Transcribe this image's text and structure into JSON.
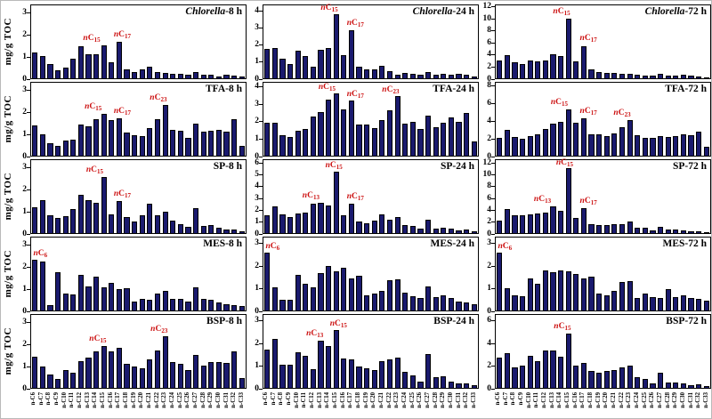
{
  "figure": {
    "ylabel": "mg/g TOC"
  },
  "chart_data": {
    "type": "bar",
    "grid": {
      "rows": 5,
      "cols": 3
    },
    "bar_color": "#1a1a6e",
    "annotation_color": "#cc1111",
    "categories": [
      "n-C6",
      "n-C7",
      "n-C8",
      "n-C9",
      "n-C10",
      "n-C11",
      "n-C12",
      "n-C13",
      "n-C14",
      "n-C15",
      "n-C16",
      "n-C17",
      "n-C18",
      "n-C19",
      "n-C20",
      "n-C21",
      "n-C22",
      "n-C23",
      "n-C24",
      "n-C25",
      "n-C26",
      "n-C27",
      "n-C28",
      "n-C29",
      "n-C30",
      "n-C31",
      "n-C32",
      "n-C33"
    ],
    "panels": [
      {
        "title_italic": "Chlorella",
        "title_rest": "-8 h",
        "yticks": [
          0,
          1,
          2,
          3
        ],
        "ymax": 3.4,
        "values": [
          1.2,
          1.02,
          0.65,
          0.38,
          0.5,
          0.93,
          1.5,
          1.13,
          1.12,
          1.55,
          0.75,
          1.7,
          0.4,
          0.28,
          0.4,
          0.55,
          0.3,
          0.25,
          0.2,
          0.2,
          0.15,
          0.3,
          0.15,
          0.15,
          0.1,
          0.15,
          0.12,
          0.07
        ],
        "annotations": [
          {
            "text": "nC",
            "sub": "15",
            "bar": 9,
            "dx": -1.6,
            "dy": 2
          },
          {
            "text": "nC",
            "sub": "17",
            "bar": 11,
            "dx": 0.4,
            "dy": 2
          }
        ]
      },
      {
        "title_italic": "Chlorella",
        "title_rest": "-24 h",
        "yticks": [
          0,
          1,
          2,
          3,
          4
        ],
        "ymax": 4.4,
        "values": [
          1.75,
          1.85,
          1.2,
          0.85,
          1.65,
          1.35,
          0.7,
          1.7,
          1.85,
          3.85,
          1.4,
          2.9,
          0.7,
          0.55,
          0.55,
          0.75,
          0.45,
          0.2,
          0.3,
          0.25,
          0.2,
          0.4,
          0.2,
          0.25,
          0.2,
          0.25,
          0.2,
          0.1
        ],
        "annotations": [
          {
            "text": "nC",
            "sub": "15",
            "bar": 9,
            "dx": -0.9,
            "dy": 1
          },
          {
            "text": "nC",
            "sub": "17",
            "bar": 11,
            "dx": 0.5,
            "dy": 2
          }
        ]
      },
      {
        "title_italic": "Chlorella",
        "title_rest": "-72 h",
        "yticks": [
          0,
          2,
          4,
          6,
          8,
          10,
          12
        ],
        "ymax": 12.4,
        "values": [
          3.1,
          3.9,
          2.7,
          2.4,
          3.1,
          2.8,
          3.1,
          4.1,
          3.8,
          10.1,
          2.9,
          5.5,
          1.5,
          1.1,
          0.9,
          0.9,
          0.8,
          0.8,
          0.6,
          0.5,
          0.4,
          0.7,
          0.5,
          0.5,
          0.6,
          0.4,
          0.3,
          0.2
        ],
        "annotations": [
          {
            "text": "nC",
            "sub": "15",
            "bar": 9,
            "dx": -0.9,
            "dy": 2
          },
          {
            "text": "nC",
            "sub": "17",
            "bar": 11,
            "dx": 0.6,
            "dy": 3
          }
        ]
      },
      {
        "title_italic": "",
        "title_rest": "TFA-8 h",
        "yticks": [
          0,
          1,
          2,
          3
        ],
        "ymax": 3.4,
        "values": [
          1.42,
          1.0,
          0.6,
          0.45,
          0.72,
          0.75,
          1.47,
          1.35,
          1.7,
          1.95,
          1.65,
          1.75,
          1.07,
          0.97,
          0.9,
          1.28,
          1.7,
          2.37,
          1.22,
          1.15,
          0.85,
          1.48,
          1.1,
          1.17,
          1.22,
          1.1,
          1.7,
          0.45
        ],
        "annotations": [
          {
            "text": "nC",
            "sub": "15",
            "bar": 9,
            "dx": -1.4,
            "dy": 2
          },
          {
            "text": "nC",
            "sub": "17",
            "bar": 11,
            "dx": 0.4,
            "dy": 2
          },
          {
            "text": "nC",
            "sub": "23",
            "bar": 17,
            "dx": -0.9,
            "dy": 2
          }
        ]
      },
      {
        "title_italic": "",
        "title_rest": "TFA-24 h",
        "yticks": [
          0,
          1,
          2,
          3,
          4
        ],
        "ymax": 4.3,
        "values": [
          1.95,
          1.95,
          1.2,
          1.1,
          1.45,
          1.6,
          2.3,
          2.55,
          3.3,
          3.65,
          2.75,
          3.25,
          1.85,
          1.85,
          1.65,
          2.1,
          2.7,
          3.5,
          1.9,
          2.0,
          1.55,
          2.35,
          1.7,
          1.95,
          2.25,
          2.0,
          2.5,
          0.85
        ],
        "annotations": [
          {
            "text": "nC",
            "sub": "15",
            "bar": 9,
            "dx": -1.2,
            "dy": 1
          },
          {
            "text": "nC",
            "sub": "17",
            "bar": 11,
            "dx": 0.5,
            "dy": 1
          },
          {
            "text": "nC",
            "sub": "23",
            "bar": 17,
            "dx": -0.9,
            "dy": 1
          }
        ]
      },
      {
        "title_italic": "",
        "title_rest": "TFA-72 h",
        "yticks": [
          0,
          2,
          4,
          6,
          8
        ],
        "ymax": 8.4,
        "values": [
          2.1,
          3.0,
          2.2,
          1.9,
          2.3,
          2.5,
          3.05,
          3.65,
          3.85,
          5.3,
          3.8,
          4.3,
          2.5,
          2.5,
          2.25,
          2.6,
          3.3,
          4.1,
          2.35,
          2.1,
          2.0,
          2.3,
          2.15,
          2.3,
          2.45,
          2.4,
          2.8,
          1.05
        ],
        "annotations": [
          {
            "text": "nC",
            "sub": "15",
            "bar": 9,
            "dx": -1.2,
            "dy": 2
          },
          {
            "text": "nC",
            "sub": "17",
            "bar": 11,
            "dx": 0.6,
            "dy": 2
          },
          {
            "text": "nC",
            "sub": "23",
            "bar": 17,
            "dx": -1.0,
            "dy": 2
          }
        ]
      },
      {
        "title_italic": "",
        "title_rest": "SP-8 h",
        "yticks": [
          0,
          1,
          2,
          3
        ],
        "ymax": 3.4,
        "values": [
          1.2,
          1.55,
          0.85,
          0.7,
          0.8,
          1.1,
          1.8,
          1.52,
          1.4,
          2.6,
          0.88,
          1.5,
          0.75,
          0.55,
          0.85,
          1.35,
          0.85,
          1.0,
          0.57,
          0.4,
          0.28,
          1.17,
          0.33,
          0.38,
          0.23,
          0.15,
          0.18,
          0.08
        ],
        "annotations": [
          {
            "text": "nC",
            "sub": "15",
            "bar": 9,
            "dx": -1.2,
            "dy": 2
          },
          {
            "text": "nC",
            "sub": "17",
            "bar": 11,
            "dx": 0.4,
            "dy": 2
          }
        ]
      },
      {
        "title_italic": "",
        "title_rest": "SP-24 h",
        "yticks": [
          0,
          1,
          2,
          3,
          4,
          5,
          6
        ],
        "ymax": 6.3,
        "values": [
          1.55,
          2.3,
          1.6,
          1.35,
          1.7,
          1.8,
          2.5,
          2.65,
          2.35,
          5.3,
          1.5,
          2.55,
          1.0,
          0.85,
          1.05,
          1.6,
          1.15,
          1.4,
          0.7,
          0.6,
          0.35,
          1.15,
          0.4,
          0.5,
          0.35,
          0.25,
          0.3,
          0.15
        ],
        "annotations": [
          {
            "text": "nC",
            "sub": "13",
            "bar": 7,
            "dx": -1.3,
            "dy": 2
          },
          {
            "text": "nC",
            "sub": "15",
            "bar": 9,
            "dx": -0.3,
            "dy": 1
          },
          {
            "text": "nC",
            "sub": "17",
            "bar": 11,
            "dx": 0.5,
            "dy": 2
          }
        ]
      },
      {
        "title_italic": "",
        "title_rest": "SP-72 h",
        "yticks": [
          0,
          2,
          4,
          6,
          8,
          10,
          12
        ],
        "ymax": 12.6,
        "values": [
          2.2,
          4.1,
          3.0,
          3.0,
          3.3,
          3.35,
          3.5,
          4.6,
          3.8,
          11.2,
          2.6,
          4.3,
          1.6,
          1.4,
          1.35,
          1.6,
          1.6,
          2.0,
          0.95,
          0.85,
          0.45,
          1.1,
          0.55,
          0.6,
          0.45,
          0.35,
          0.3,
          0.2
        ],
        "annotations": [
          {
            "text": "nC",
            "sub": "13",
            "bar": 7,
            "dx": -1.4,
            "dy": 2
          },
          {
            "text": "nC",
            "sub": "15",
            "bar": 9,
            "dx": -0.5,
            "dy": 0
          },
          {
            "text": "nC",
            "sub": "17",
            "bar": 11,
            "dx": 0.6,
            "dy": 2
          }
        ]
      },
      {
        "title_italic": "",
        "title_rest": "MES-8 h",
        "yticks": [
          0,
          1,
          2,
          3
        ],
        "ymax": 3.4,
        "values": [
          2.35,
          2.28,
          0.25,
          1.8,
          0.77,
          0.73,
          1.67,
          1.12,
          1.57,
          1.07,
          1.28,
          1.0,
          1.03,
          0.4,
          0.55,
          0.5,
          0.78,
          0.92,
          0.55,
          0.52,
          0.4,
          1.08,
          0.55,
          0.5,
          0.38,
          0.3,
          0.27,
          0.22
        ],
        "annotations": [
          {
            "text": "nC",
            "sub": "6",
            "bar": 0,
            "dx": 0.7,
            "dy": 1
          }
        ]
      },
      {
        "title_italic": "",
        "title_rest": "MES-24 h",
        "yticks": [
          0,
          1,
          2,
          3
        ],
        "ymax": 3.3,
        "values": [
          2.6,
          1.05,
          0.5,
          0.48,
          1.6,
          1.22,
          1.05,
          1.7,
          2.0,
          1.78,
          1.95,
          1.45,
          1.58,
          0.7,
          0.78,
          0.9,
          1.37,
          1.4,
          0.8,
          0.65,
          0.55,
          1.1,
          0.62,
          0.68,
          0.57,
          0.42,
          0.38,
          0.27
        ],
        "annotations": [
          {
            "text": "nC",
            "sub": "6",
            "bar": 0,
            "dx": 0.7,
            "dy": 1
          }
        ]
      },
      {
        "title_italic": "",
        "title_rest": "MES-72 h",
        "yticks": [
          0,
          1,
          2,
          3
        ],
        "ymax": 3.3,
        "values": [
          2.6,
          1.0,
          0.68,
          0.65,
          1.45,
          1.2,
          1.83,
          1.75,
          1.8,
          1.77,
          1.67,
          1.45,
          1.55,
          0.78,
          0.7,
          0.87,
          1.27,
          1.32,
          0.57,
          0.78,
          0.62,
          0.55,
          0.95,
          0.62,
          0.67,
          0.57,
          0.52,
          0.45
        ],
        "annotations": [
          {
            "text": "nC",
            "sub": "6",
            "bar": 0,
            "dx": 0.7,
            "dy": 1
          }
        ]
      },
      {
        "title_italic": "",
        "title_rest": "BSP-8 h",
        "yticks": [
          0,
          1,
          2,
          3
        ],
        "ymax": 3.4,
        "values": [
          1.45,
          1.0,
          0.63,
          0.42,
          0.85,
          0.72,
          1.25,
          1.4,
          1.72,
          1.97,
          1.7,
          1.88,
          1.1,
          0.98,
          0.92,
          1.32,
          1.73,
          2.42,
          1.2,
          1.12,
          0.82,
          1.52,
          1.05,
          1.2,
          1.22,
          1.18,
          1.72,
          0.45
        ],
        "annotations": [
          {
            "text": "nC",
            "sub": "15",
            "bar": 9,
            "dx": -0.8,
            "dy": 2
          },
          {
            "text": "nC",
            "sub": "23",
            "bar": 17,
            "dx": -0.8,
            "dy": 2
          }
        ]
      },
      {
        "title_italic": "",
        "title_rest": "BSP-24 h",
        "yticks": [
          0,
          1,
          2,
          3
        ],
        "ymax": 3.3,
        "values": [
          1.75,
          2.2,
          1.05,
          1.05,
          1.6,
          1.45,
          0.85,
          2.15,
          1.9,
          2.6,
          1.32,
          1.28,
          0.97,
          0.88,
          0.8,
          1.2,
          1.28,
          1.35,
          0.72,
          0.57,
          0.27,
          1.52,
          0.5,
          0.52,
          0.28,
          0.2,
          0.2,
          0.12
        ],
        "annotations": [
          {
            "text": "nC",
            "sub": "13",
            "bar": 7,
            "dx": -0.8,
            "dy": 2
          },
          {
            "text": "nC",
            "sub": "15",
            "bar": 9,
            "dx": 0.3,
            "dy": 1
          }
        ]
      },
      {
        "title_italic": "",
        "title_rest": "BSP-72 h",
        "yticks": [
          0,
          2,
          4,
          6
        ],
        "ymax": 6.6,
        "values": [
          2.7,
          3.15,
          1.85,
          2.05,
          2.9,
          2.45,
          3.35,
          3.4,
          2.85,
          4.9,
          2.0,
          2.25,
          1.55,
          1.35,
          1.5,
          1.6,
          1.85,
          2.0,
          0.95,
          0.8,
          0.4,
          1.35,
          0.5,
          0.5,
          0.4,
          0.25,
          0.3,
          0.15
        ],
        "annotations": [
          {
            "text": "nC",
            "sub": "15",
            "bar": 9,
            "dx": -0.8,
            "dy": 2
          }
        ]
      }
    ]
  }
}
